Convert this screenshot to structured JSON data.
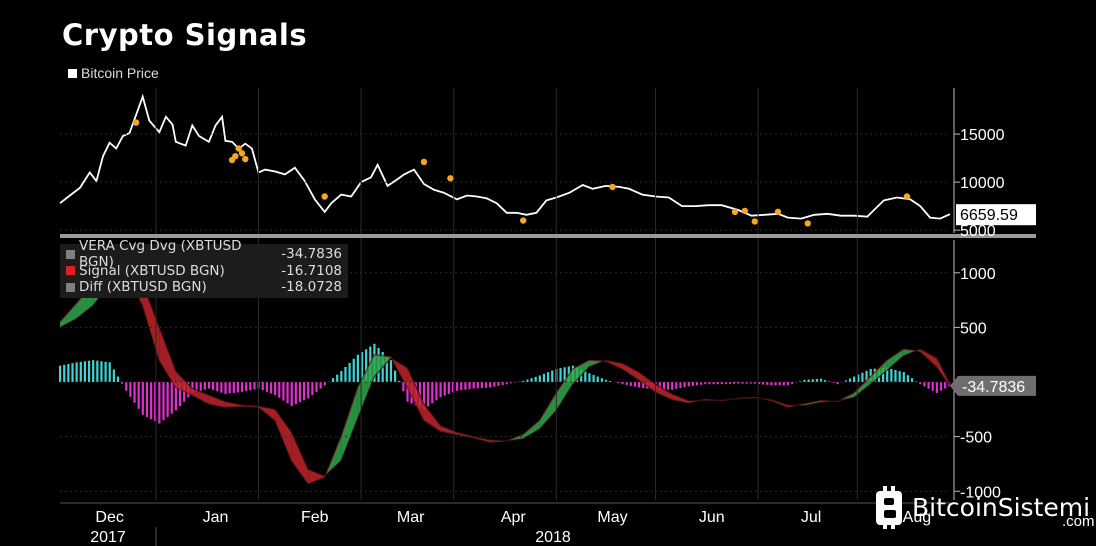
{
  "page_title": "Crypto Signals",
  "chart_data": [
    {
      "type": "line",
      "legend": [
        {
          "name": "Bitcoin Price",
          "color": "#ffffff"
        }
      ],
      "x_tick_labels": [
        "Dec",
        "Jan",
        "Feb",
        "Mar",
        "Apr",
        "May",
        "Jun",
        "Jul",
        "Aug"
      ],
      "x_year_labels": [
        "2017",
        "2018"
      ],
      "y_ticks": [
        5000,
        10000,
        15000
      ],
      "ylim": [
        4700,
        19800
      ],
      "last_value_label": "6659.59",
      "series": [
        {
          "name": "Bitcoin Price",
          "color": "#ffffff",
          "x": [
            "2017-11-17",
            "2017-11-20",
            "2017-11-23",
            "2017-11-26",
            "2017-11-28",
            "2017-11-30",
            "2017-12-02",
            "2017-12-04",
            "2017-12-06",
            "2017-12-08",
            "2017-12-10",
            "2017-12-12",
            "2017-12-14",
            "2017-12-17",
            "2017-12-19",
            "2017-12-21",
            "2017-12-22",
            "2017-12-25",
            "2017-12-27",
            "2017-12-29",
            "2018-01-01",
            "2018-01-03",
            "2018-01-05",
            "2018-01-06",
            "2018-01-08",
            "2018-01-10",
            "2018-01-12",
            "2018-01-14",
            "2018-01-16",
            "2018-01-18",
            "2018-01-21",
            "2018-01-24",
            "2018-01-27",
            "2018-01-30",
            "2018-02-02",
            "2018-02-05",
            "2018-02-07",
            "2018-02-10",
            "2018-02-13",
            "2018-02-16",
            "2018-02-19",
            "2018-02-21",
            "2018-02-24",
            "2018-02-27",
            "2018-03-01",
            "2018-03-04",
            "2018-03-07",
            "2018-03-10",
            "2018-03-13",
            "2018-03-17",
            "2018-03-20",
            "2018-03-23",
            "2018-03-26",
            "2018-03-29",
            "2018-04-01",
            "2018-04-04",
            "2018-04-07",
            "2018-04-10",
            "2018-04-13",
            "2018-04-16",
            "2018-04-20",
            "2018-04-24",
            "2018-04-27",
            "2018-05-01",
            "2018-05-05",
            "2018-05-08",
            "2018-05-12",
            "2018-05-16",
            "2018-05-20",
            "2018-05-24",
            "2018-05-28",
            "2018-06-01",
            "2018-06-05",
            "2018-06-10",
            "2018-06-14",
            "2018-06-18",
            "2018-06-22",
            "2018-06-25",
            "2018-06-29",
            "2018-07-03",
            "2018-07-07",
            "2018-07-11",
            "2018-07-15",
            "2018-07-19",
            "2018-07-24",
            "2018-07-28",
            "2018-08-01",
            "2018-08-04",
            "2018-08-07",
            "2018-08-10",
            "2018-08-13"
          ],
          "y": [
            7800,
            8600,
            9400,
            11000,
            10100,
            12700,
            14100,
            13500,
            14800,
            15100,
            17000,
            18900,
            16400,
            15200,
            16800,
            16000,
            14200,
            13800,
            15900,
            14800,
            14200,
            15900,
            16800,
            14300,
            14200,
            13500,
            14000,
            13500,
            11000,
            11300,
            11100,
            10800,
            11500,
            10100,
            8200,
            6900,
            7800,
            8700,
            8500,
            10000,
            10500,
            11800,
            9600,
            10300,
            10800,
            11300,
            9800,
            9200,
            8900,
            8200,
            8600,
            8500,
            8300,
            7800,
            6800,
            6800,
            6600,
            6800,
            8100,
            8400,
            8900,
            9700,
            9300,
            9600,
            9500,
            9300,
            8700,
            8500,
            8400,
            7500,
            7500,
            7600,
            7600,
            7100,
            6500,
            6600,
            6700,
            6300,
            6200,
            6600,
            6700,
            6500,
            6500,
            6400,
            8100,
            8400,
            8200,
            7500,
            6300,
            6200,
            6659.59
          ]
        }
      ],
      "signal_markers": [
        {
          "x": "2017-12-10",
          "y": 16200
        },
        {
          "x": "2018-01-08",
          "y": 12300
        },
        {
          "x": "2018-01-09",
          "y": 12700
        },
        {
          "x": "2018-01-10",
          "y": 13500
        },
        {
          "x": "2018-01-11",
          "y": 13000
        },
        {
          "x": "2018-01-12",
          "y": 12400
        },
        {
          "x": "2018-02-05",
          "y": 8500
        },
        {
          "x": "2018-03-07",
          "y": 12100
        },
        {
          "x": "2018-03-15",
          "y": 10400
        },
        {
          "x": "2018-04-06",
          "y": 6000
        },
        {
          "x": "2018-05-03",
          "y": 9500
        },
        {
          "x": "2018-06-09",
          "y": 6900
        },
        {
          "x": "2018-06-12",
          "y": 7000
        },
        {
          "x": "2018-06-15",
          "y": 5900
        },
        {
          "x": "2018-06-22",
          "y": 6900
        },
        {
          "x": "2018-07-01",
          "y": 5700
        },
        {
          "x": "2018-07-31",
          "y": 8500
        }
      ]
    },
    {
      "type": "area",
      "x_tick_labels": [
        "Dec",
        "Jan",
        "Feb",
        "Mar",
        "Apr",
        "May",
        "Jun",
        "Jul",
        "Aug"
      ],
      "y_ticks": [
        -1000,
        -500,
        500,
        1000
      ],
      "ylim": [
        -1080,
        1300
      ],
      "last_value_label": "-34.7836",
      "legend": [
        {
          "name": "VERA Cvg Dvg (XBTUSD BGN)",
          "value": "-34.7836",
          "color": "#808080"
        },
        {
          "name": "Signal (XBTUSD BGN)",
          "value": "-16.7108",
          "color": "#e02020"
        },
        {
          "name": "Diff (XBTUSD BGN)",
          "value": "-18.0728",
          "color": "#808080"
        }
      ],
      "series": [
        {
          "name": "VERA Cvg Dvg (XBTUSD BGN)",
          "x": [
            "2017-11-17",
            "2017-11-22",
            "2017-11-27",
            "2017-12-02",
            "2017-12-07",
            "2017-12-12",
            "2017-12-17",
            "2017-12-22",
            "2017-12-27",
            "2018-01-01",
            "2018-01-06",
            "2018-01-11",
            "2018-01-16",
            "2018-01-21",
            "2018-01-26",
            "2018-01-31",
            "2018-02-05",
            "2018-02-10",
            "2018-02-15",
            "2018-02-20",
            "2018-02-25",
            "2018-03-02",
            "2018-03-07",
            "2018-03-12",
            "2018-03-17",
            "2018-03-22",
            "2018-03-27",
            "2018-04-01",
            "2018-04-06",
            "2018-04-11",
            "2018-04-16",
            "2018-04-21",
            "2018-04-26",
            "2018-05-01",
            "2018-05-06",
            "2018-05-11",
            "2018-05-16",
            "2018-05-21",
            "2018-05-26",
            "2018-05-31",
            "2018-06-05",
            "2018-06-10",
            "2018-06-15",
            "2018-06-20",
            "2018-06-25",
            "2018-06-30",
            "2018-07-05",
            "2018-07-10",
            "2018-07-15",
            "2018-07-20",
            "2018-07-25",
            "2018-07-30",
            "2018-08-04",
            "2018-08-09",
            "2018-08-13"
          ],
          "values": [
            550,
            720,
            900,
            1100,
            1000,
            700,
            200,
            -50,
            -120,
            -200,
            -230,
            -220,
            -230,
            -350,
            -720,
            -930,
            -870,
            -500,
            -50,
            250,
            230,
            -50,
            -350,
            -450,
            -480,
            -510,
            -550,
            -540,
            -480,
            -350,
            -100,
            120,
            200,
            190,
            120,
            20,
            -90,
            -160,
            -190,
            -160,
            -170,
            -150,
            -140,
            -170,
            -230,
            -200,
            -170,
            -180,
            -100,
            50,
            200,
            300,
            280,
            140,
            -34.7836
          ]
        },
        {
          "name": "Signal (XBTUSD BGN)",
          "x": [
            "2017-11-17",
            "2017-11-22",
            "2017-11-27",
            "2017-12-02",
            "2017-12-07",
            "2017-12-12",
            "2017-12-17",
            "2017-12-22",
            "2017-12-27",
            "2018-01-01",
            "2018-01-06",
            "2018-01-11",
            "2018-01-16",
            "2018-01-21",
            "2018-01-26",
            "2018-01-31",
            "2018-02-05",
            "2018-02-10",
            "2018-02-15",
            "2018-02-20",
            "2018-02-25",
            "2018-03-02",
            "2018-03-07",
            "2018-03-12",
            "2018-03-17",
            "2018-03-22",
            "2018-03-27",
            "2018-04-01",
            "2018-04-06",
            "2018-04-11",
            "2018-04-16",
            "2018-04-21",
            "2018-04-26",
            "2018-05-01",
            "2018-05-06",
            "2018-05-11",
            "2018-05-16",
            "2018-05-21",
            "2018-05-26",
            "2018-05-31",
            "2018-06-05",
            "2018-06-10",
            "2018-06-15",
            "2018-06-20",
            "2018-06-25",
            "2018-06-30",
            "2018-07-05",
            "2018-07-10",
            "2018-07-15",
            "2018-07-20",
            "2018-07-25",
            "2018-07-30",
            "2018-08-04",
            "2018-08-09",
            "2018-08-13"
          ],
          "values": [
            500,
            580,
            700,
            900,
            1000,
            900,
            500,
            100,
            -60,
            -120,
            -180,
            -210,
            -220,
            -250,
            -460,
            -800,
            -860,
            -720,
            -330,
            50,
            220,
            130,
            -200,
            -400,
            -460,
            -500,
            -530,
            -540,
            -520,
            -430,
            -260,
            -20,
            140,
            200,
            170,
            90,
            -20,
            -110,
            -170,
            -170,
            -165,
            -155,
            -145,
            -160,
            -210,
            -215,
            -185,
            -175,
            -140,
            -20,
            110,
            240,
            300,
            220,
            -16.7108
          ]
        }
      ],
      "diff_histogram": {
        "name": "Diff (XBTUSD BGN)",
        "positive_color": "#3fd5d5",
        "negative_color": "#e030d0",
        "x": [
          "2017-11-17",
          "2017-11-22",
          "2017-11-27",
          "2017-12-02",
          "2017-12-07",
          "2017-12-12",
          "2017-12-17",
          "2017-12-22",
          "2017-12-27",
          "2018-01-01",
          "2018-01-06",
          "2018-01-11",
          "2018-01-16",
          "2018-01-21",
          "2018-01-26",
          "2018-01-31",
          "2018-02-05",
          "2018-02-10",
          "2018-02-15",
          "2018-02-20",
          "2018-02-25",
          "2018-03-02",
          "2018-03-07",
          "2018-03-12",
          "2018-03-17",
          "2018-03-22",
          "2018-03-27",
          "2018-04-01",
          "2018-04-06",
          "2018-04-11",
          "2018-04-16",
          "2018-04-21",
          "2018-04-26",
          "2018-05-01",
          "2018-05-06",
          "2018-05-11",
          "2018-05-16",
          "2018-05-21",
          "2018-05-26",
          "2018-05-31",
          "2018-06-05",
          "2018-06-10",
          "2018-06-15",
          "2018-06-20",
          "2018-06-25",
          "2018-06-30",
          "2018-07-05",
          "2018-07-10",
          "2018-07-15",
          "2018-07-20",
          "2018-07-25",
          "2018-07-30",
          "2018-08-04",
          "2018-08-09",
          "2018-08-13"
        ],
        "values": [
          150,
          180,
          200,
          180,
          -80,
          -300,
          -380,
          -260,
          -100,
          -60,
          -110,
          -90,
          -60,
          -120,
          -220,
          -150,
          -30,
          100,
          250,
          350,
          200,
          -180,
          -250,
          -140,
          -80,
          -60,
          -50,
          -20,
          10,
          60,
          120,
          150,
          80,
          20,
          -20,
          -50,
          -70,
          -70,
          -40,
          -20,
          -20,
          -15,
          -15,
          -30,
          -30,
          20,
          30,
          -20,
          50,
          120,
          130,
          90,
          -20,
          -100,
          -18.0728
        ]
      }
    }
  ],
  "watermark": {
    "brand": "BitcoinSistemi",
    "suffix": ".com"
  }
}
